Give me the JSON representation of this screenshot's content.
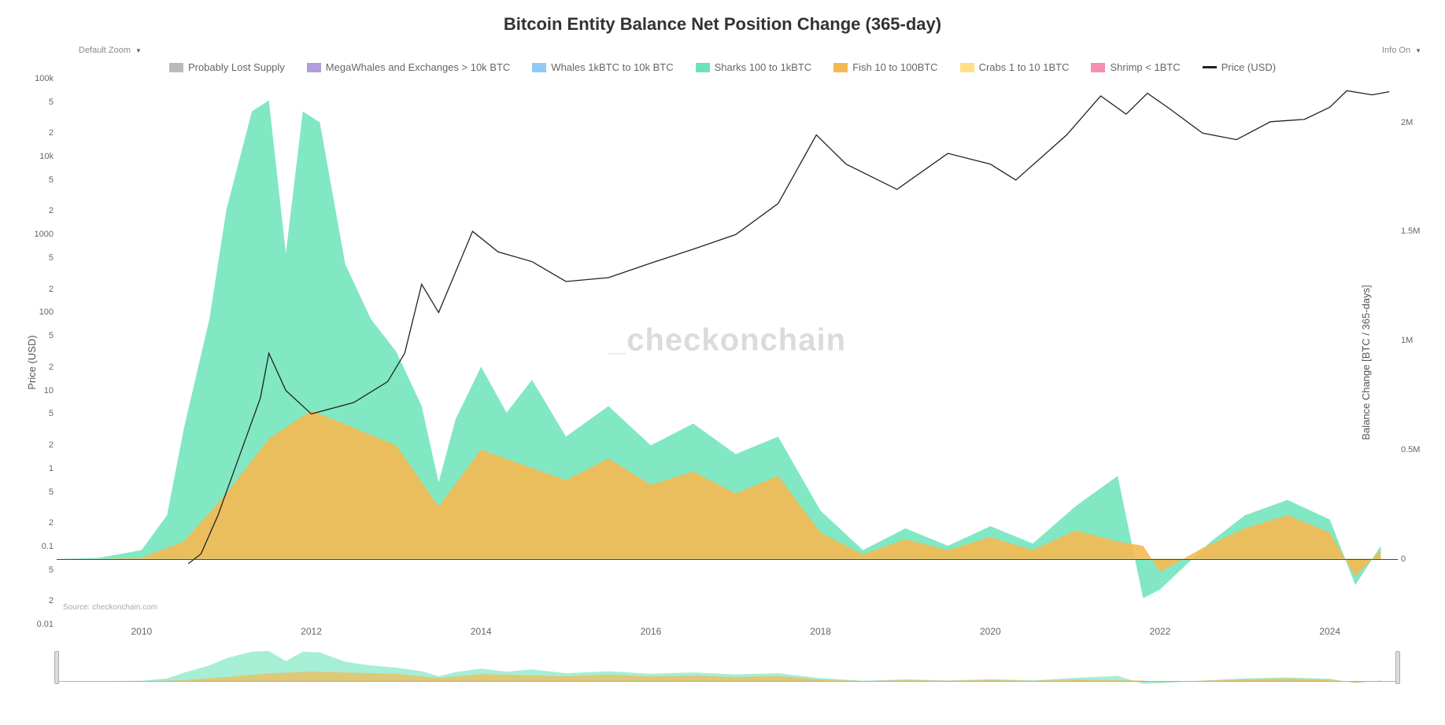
{
  "title": "Bitcoin Entity Balance Net Position Change (365-day)",
  "controls": {
    "zoom_label": "Default Zoom",
    "info_label": "Info On"
  },
  "legend": [
    {
      "label": "Probably Lost Supply",
      "color": "#bbbbbb",
      "type": "area"
    },
    {
      "label": "MegaWhales and Exchanges > 10k BTC",
      "color": "#b39ddb",
      "type": "area"
    },
    {
      "label": "Whales 1kBTC to 10k BTC",
      "color": "#90caf9",
      "type": "area"
    },
    {
      "label": "Sharks 100 to 1kBTC",
      "color": "#6be4b8",
      "type": "area"
    },
    {
      "label": "Fish 10 to 100BTC",
      "color": "#f5b952",
      "type": "area"
    },
    {
      "label": "Crabs 1 to 10 1BTC",
      "color": "#ffe082",
      "type": "area"
    },
    {
      "label": "Shrimp < 1BTC",
      "color": "#f48fb1",
      "type": "area"
    },
    {
      "label": "Price (USD)",
      "color": "#222222",
      "type": "line"
    }
  ],
  "y_left": {
    "label": "Price (USD)",
    "scale": "log",
    "min": 0.01,
    "max": 100000,
    "ticks": [
      {
        "v": 100000,
        "label": "100k"
      },
      {
        "v": 50000,
        "label": "5"
      },
      {
        "v": 20000,
        "label": "2"
      },
      {
        "v": 10000,
        "label": "10k"
      },
      {
        "v": 5000,
        "label": "5"
      },
      {
        "v": 2000,
        "label": "2"
      },
      {
        "v": 1000,
        "label": "1000"
      },
      {
        "v": 500,
        "label": "5"
      },
      {
        "v": 200,
        "label": "2"
      },
      {
        "v": 100,
        "label": "100"
      },
      {
        "v": 50,
        "label": "5"
      },
      {
        "v": 20,
        "label": "2"
      },
      {
        "v": 10,
        "label": "10"
      },
      {
        "v": 5,
        "label": "5"
      },
      {
        "v": 2,
        "label": "2"
      },
      {
        "v": 1,
        "label": "1"
      },
      {
        "v": 0.5,
        "label": "5"
      },
      {
        "v": 0.2,
        "label": "2"
      },
      {
        "v": 0.1,
        "label": "0.1"
      },
      {
        "v": 0.05,
        "label": "5"
      },
      {
        "v": 0.02,
        "label": "2"
      },
      {
        "v": 0.01,
        "label": "0.01"
      }
    ]
  },
  "y_right": {
    "label": "Balance Change [BTC / 365-days]",
    "scale": "linear",
    "min": -300000,
    "max": 2200000,
    "ticks": [
      {
        "v": 2000000,
        "label": "2M"
      },
      {
        "v": 1500000,
        "label": "1.5M"
      },
      {
        "v": 1000000,
        "label": "1M"
      },
      {
        "v": 500000,
        "label": "0.5M"
      },
      {
        "v": 0,
        "label": "0"
      }
    ]
  },
  "x_axis": {
    "min": 2009.0,
    "max": 2024.8,
    "ticks": [
      2010,
      2012,
      2014,
      2016,
      2018,
      2020,
      2022,
      2024
    ]
  },
  "watermark": "_checkonchain",
  "source": "Source: checkonchain.com",
  "series_sharks": {
    "color": "#6be4b8",
    "points": [
      [
        2009.0,
        0
      ],
      [
        2009.5,
        5000
      ],
      [
        2010.0,
        40000
      ],
      [
        2010.3,
        200000
      ],
      [
        2010.5,
        600000
      ],
      [
        2010.8,
        1100000
      ],
      [
        2011.0,
        1600000
      ],
      [
        2011.3,
        2050000
      ],
      [
        2011.5,
        2100000
      ],
      [
        2011.7,
        1400000
      ],
      [
        2011.9,
        2050000
      ],
      [
        2012.1,
        2000000
      ],
      [
        2012.4,
        1350000
      ],
      [
        2012.7,
        1100000
      ],
      [
        2013.0,
        950000
      ],
      [
        2013.3,
        700000
      ],
      [
        2013.5,
        350000
      ],
      [
        2013.7,
        640000
      ],
      [
        2014.0,
        880000
      ],
      [
        2014.3,
        670000
      ],
      [
        2014.6,
        820000
      ],
      [
        2015.0,
        560000
      ],
      [
        2015.5,
        700000
      ],
      [
        2016.0,
        520000
      ],
      [
        2016.5,
        620000
      ],
      [
        2017.0,
        480000
      ],
      [
        2017.5,
        560000
      ],
      [
        2018.0,
        220000
      ],
      [
        2018.5,
        40000
      ],
      [
        2019.0,
        140000
      ],
      [
        2019.5,
        60000
      ],
      [
        2020.0,
        150000
      ],
      [
        2020.5,
        70000
      ],
      [
        2021.0,
        240000
      ],
      [
        2021.5,
        380000
      ],
      [
        2021.8,
        -180000
      ],
      [
        2022.0,
        -140000
      ],
      [
        2022.3,
        -30000
      ],
      [
        2022.6,
        80000
      ],
      [
        2023.0,
        200000
      ],
      [
        2023.5,
        270000
      ],
      [
        2024.0,
        180000
      ],
      [
        2024.3,
        -120000
      ],
      [
        2024.6,
        60000
      ]
    ]
  },
  "series_fish": {
    "color": "#f5b952",
    "points": [
      [
        2009.0,
        0
      ],
      [
        2009.5,
        0
      ],
      [
        2010.0,
        5000
      ],
      [
        2010.5,
        80000
      ],
      [
        2011.0,
        300000
      ],
      [
        2011.5,
        550000
      ],
      [
        2012.0,
        680000
      ],
      [
        2012.5,
        600000
      ],
      [
        2013.0,
        520000
      ],
      [
        2013.5,
        240000
      ],
      [
        2014.0,
        500000
      ],
      [
        2014.5,
        430000
      ],
      [
        2015.0,
        360000
      ],
      [
        2015.5,
        460000
      ],
      [
        2016.0,
        340000
      ],
      [
        2016.5,
        400000
      ],
      [
        2017.0,
        300000
      ],
      [
        2017.5,
        380000
      ],
      [
        2018.0,
        120000
      ],
      [
        2018.5,
        20000
      ],
      [
        2019.0,
        90000
      ],
      [
        2019.5,
        40000
      ],
      [
        2020.0,
        100000
      ],
      [
        2020.5,
        40000
      ],
      [
        2021.0,
        130000
      ],
      [
        2021.5,
        80000
      ],
      [
        2021.8,
        60000
      ],
      [
        2022.0,
        -60000
      ],
      [
        2022.5,
        50000
      ],
      [
        2023.0,
        140000
      ],
      [
        2023.5,
        200000
      ],
      [
        2024.0,
        120000
      ],
      [
        2024.3,
        -80000
      ],
      [
        2024.6,
        40000
      ]
    ]
  },
  "series_price": {
    "color": "#222222",
    "points": [
      [
        2010.55,
        0.06
      ],
      [
        2010.7,
        0.08
      ],
      [
        2010.9,
        0.25
      ],
      [
        2011.1,
        1
      ],
      [
        2011.4,
        8
      ],
      [
        2011.5,
        30
      ],
      [
        2011.7,
        10
      ],
      [
        2012.0,
        5
      ],
      [
        2012.5,
        7
      ],
      [
        2012.9,
        13
      ],
      [
        2013.1,
        30
      ],
      [
        2013.3,
        230
      ],
      [
        2013.5,
        100
      ],
      [
        2013.9,
        1100
      ],
      [
        2014.2,
        600
      ],
      [
        2014.6,
        450
      ],
      [
        2015.0,
        250
      ],
      [
        2015.5,
        280
      ],
      [
        2016.0,
        430
      ],
      [
        2016.5,
        650
      ],
      [
        2017.0,
        1000
      ],
      [
        2017.5,
        2500
      ],
      [
        2017.95,
        19000
      ],
      [
        2018.3,
        8000
      ],
      [
        2018.9,
        3800
      ],
      [
        2019.5,
        11000
      ],
      [
        2020.0,
        8000
      ],
      [
        2020.3,
        5000
      ],
      [
        2020.9,
        19000
      ],
      [
        2021.3,
        60000
      ],
      [
        2021.6,
        35000
      ],
      [
        2021.85,
        65000
      ],
      [
        2022.1,
        42000
      ],
      [
        2022.5,
        20000
      ],
      [
        2022.9,
        16500
      ],
      [
        2023.3,
        28000
      ],
      [
        2023.7,
        30000
      ],
      [
        2024.0,
        43000
      ],
      [
        2024.2,
        70000
      ],
      [
        2024.5,
        62000
      ],
      [
        2024.7,
        68000
      ]
    ]
  },
  "colors": {
    "background": "#ffffff",
    "grid": "#eeeeee",
    "axis": "#888888",
    "text": "#666666",
    "zero_line": "#444444"
  }
}
